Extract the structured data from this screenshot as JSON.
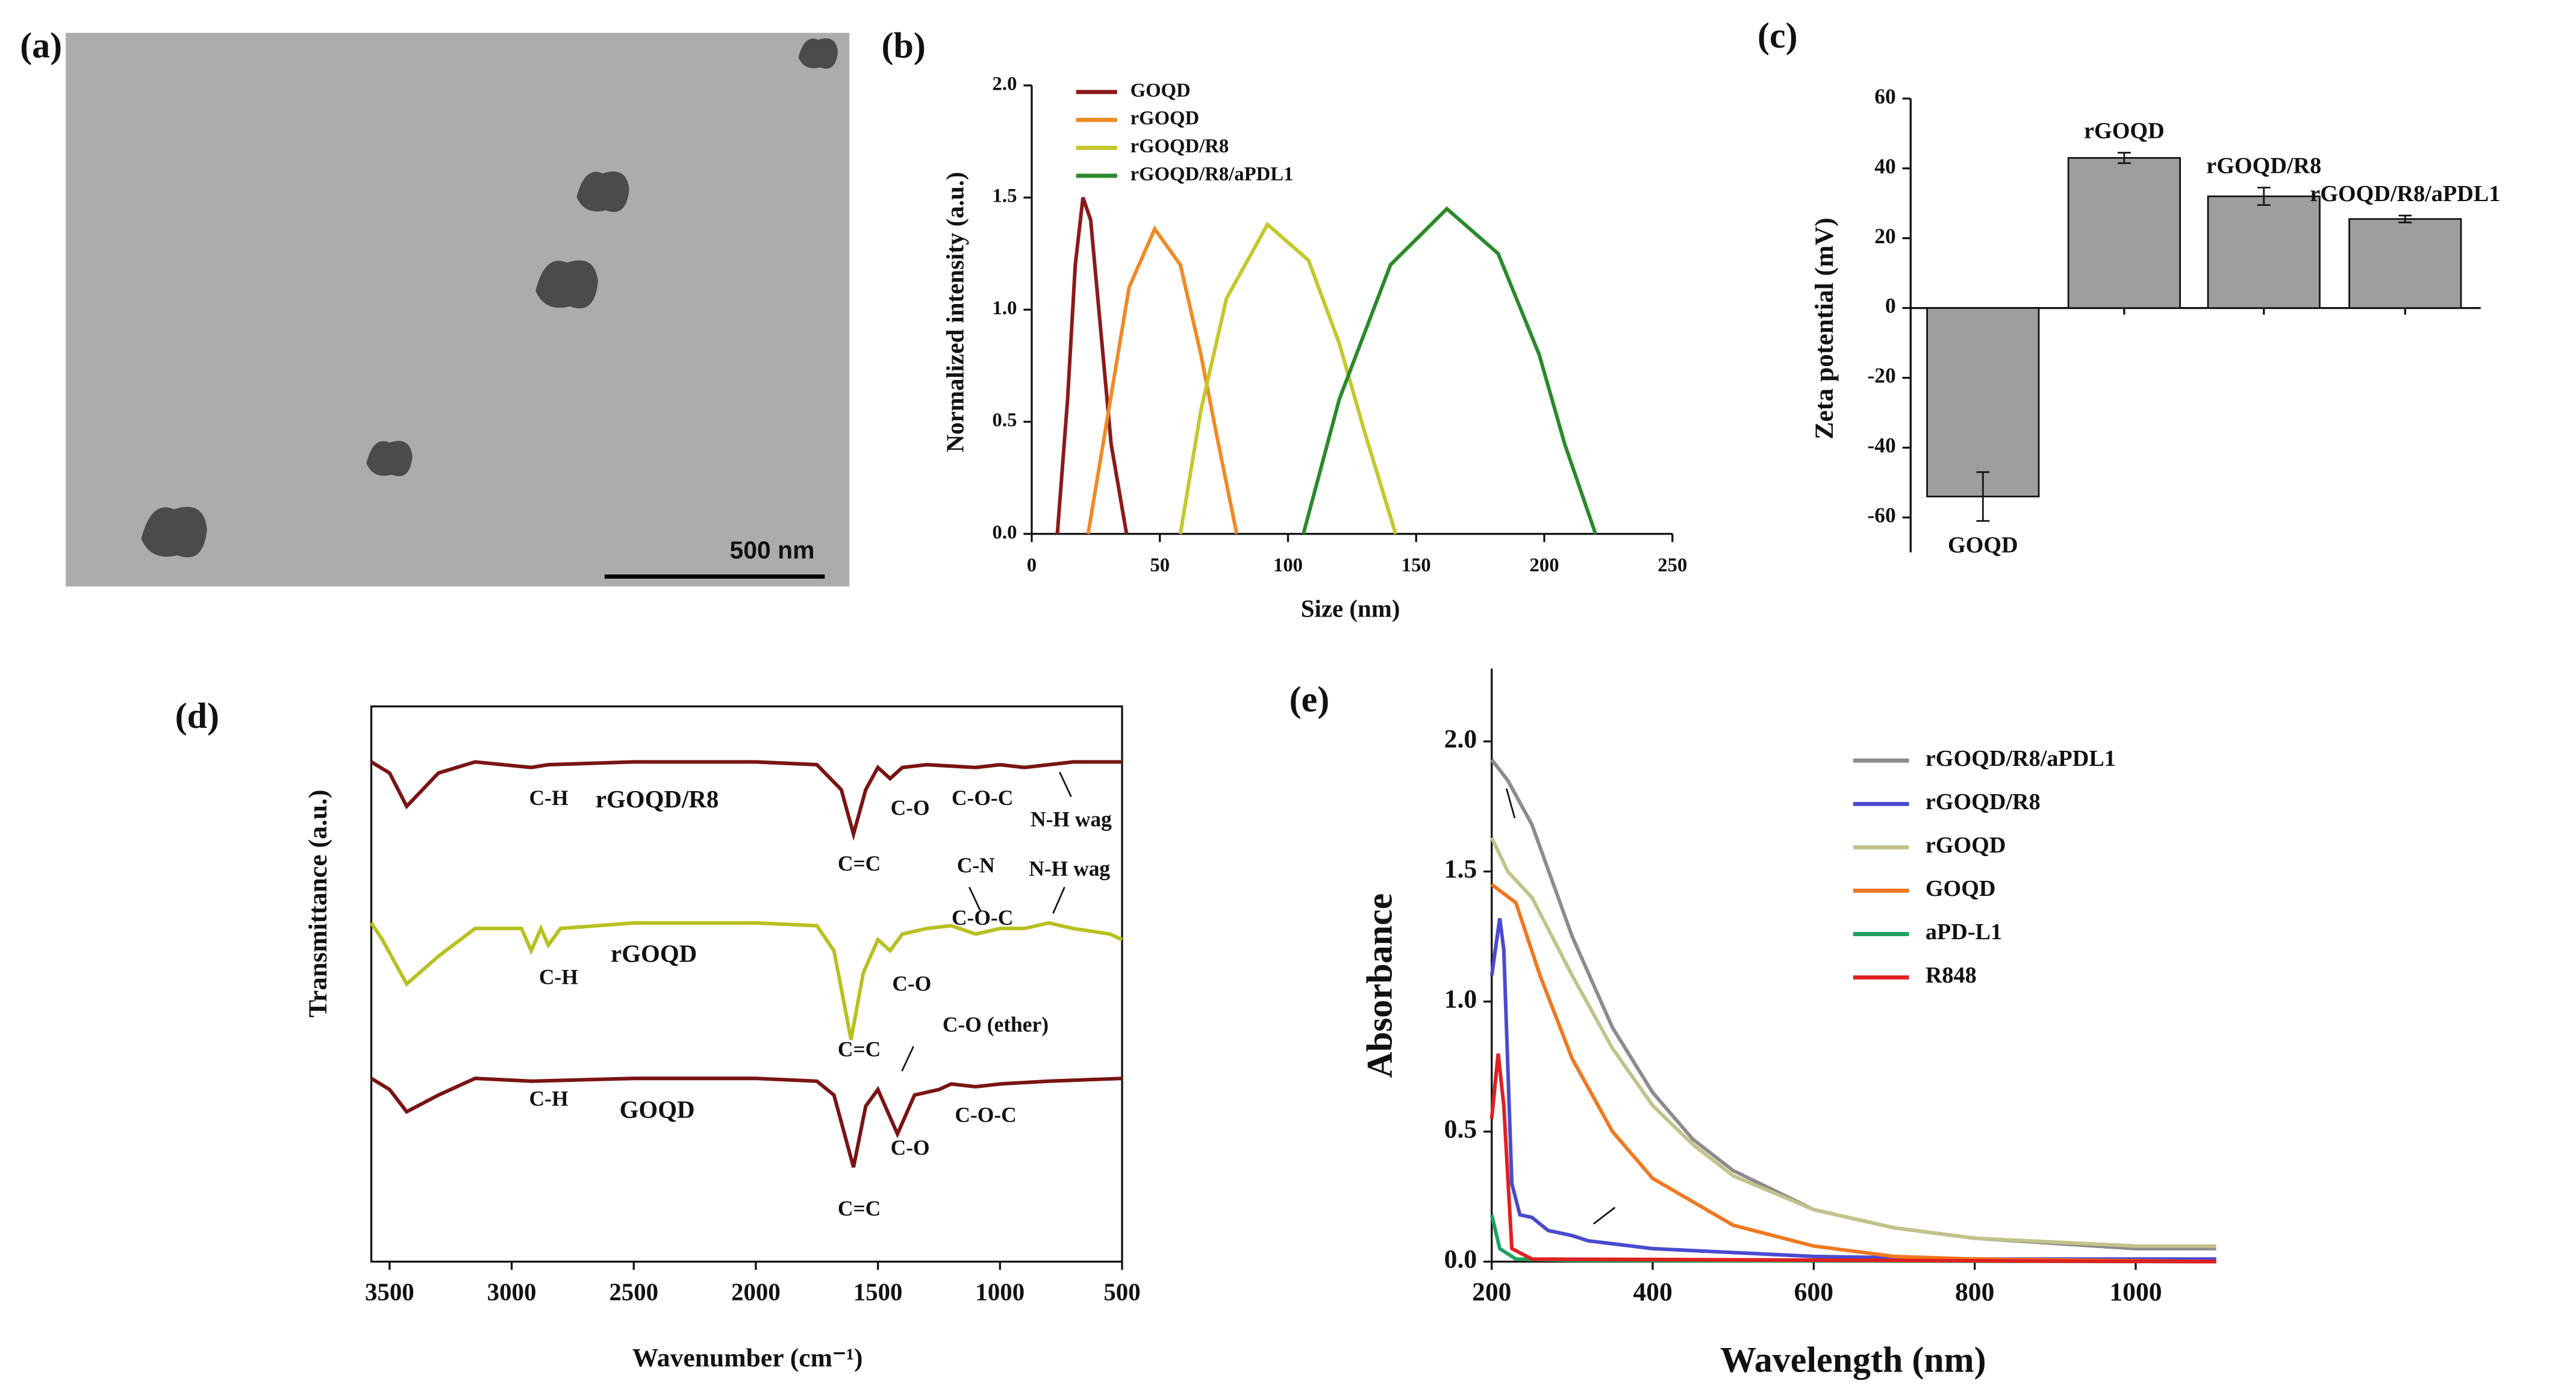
{
  "chart_data": [
    {
      "type": "image",
      "panel": "(a)",
      "scale_bar": "500 nm"
    },
    {
      "type": "line",
      "panel": "(b)",
      "x_label": "Size (nm)",
      "y_label": "Normalized intensity (a.u.)",
      "xlim": [
        0,
        250
      ],
      "xticks": [
        0,
        50,
        100,
        150,
        200,
        250
      ],
      "ylim": [
        0,
        2
      ],
      "yticks": [
        {
          "value": 0,
          "label": "0.0"
        },
        {
          "value": 0.5,
          "label": "0.5"
        },
        {
          "value": 1,
          "label": "1.0"
        },
        {
          "value": 1.5,
          "label": "1.5"
        },
        {
          "value": 2,
          "label": "2.0"
        }
      ],
      "series": [
        {
          "name": "GOQD",
          "color": "#8b1a1a",
          "x": [
            10,
            14,
            17,
            20,
            23,
            27,
            31,
            37
          ],
          "values": [
            0,
            0.6,
            1.2,
            1.5,
            1.4,
            0.9,
            0.4,
            0
          ]
        },
        {
          "name": "rGOQD",
          "color": "#f08a24",
          "x": [
            22,
            30,
            38,
            48,
            58,
            66,
            72,
            80
          ],
          "values": [
            0,
            0.55,
            1.1,
            1.36,
            1.2,
            0.8,
            0.45,
            0
          ]
        },
        {
          "name": "rGOQD/R8",
          "color": "#c4c82a",
          "x": [
            58,
            66,
            76,
            92,
            108,
            120,
            130,
            142
          ],
          "values": [
            0,
            0.55,
            1.05,
            1.38,
            1.22,
            0.85,
            0.45,
            0
          ]
        },
        {
          "name": "rGOQD/R8/aPDL1",
          "color": "#2a8a2a",
          "x": [
            106,
            120,
            140,
            162,
            182,
            198,
            208,
            220
          ],
          "values": [
            0,
            0.6,
            1.2,
            1.45,
            1.25,
            0.8,
            0.4,
            0
          ]
        }
      ]
    },
    {
      "type": "bar",
      "panel": "(c)",
      "y_label": "Zeta potential (mV)",
      "categories": [
        "GOQD",
        "rGOQD",
        "rGOQD/R8",
        "rGOQD/R8/aPDL1"
      ],
      "values": [
        -54,
        43,
        32,
        25.5
      ],
      "errors": [
        7,
        1.5,
        2.5,
        1
      ],
      "color": "#9e9e9e",
      "ylim": [
        -70,
        60
      ],
      "yticks": [
        -60,
        -40,
        -20,
        0,
        20,
        40,
        60
      ]
    },
    {
      "type": "line",
      "panel": "(d)",
      "x_label": "Wavenumber (cm⁻¹)",
      "y_label": "Transmittance (a.u.)",
      "xlim": [
        3575,
        500
      ],
      "xticks": [
        3500,
        3000,
        2500,
        2000,
        1500,
        1000,
        500
      ],
      "ylim": [
        0,
        100
      ],
      "annotations": [
        "C-H",
        "C-O",
        "C-O-C",
        "N-H wag",
        "C=C",
        "C-N",
        "N-H wag",
        "C-O-C",
        "C-H",
        "C-O",
        "C=C",
        "C-O (ether)",
        "C-H",
        "C-O",
        "C-O-C",
        "C=C"
      ],
      "series": [
        {
          "name": "rGOQD/R8",
          "color": "#7a1414",
          "x": [
            3575,
            3500,
            3430,
            3300,
            3150,
            2920,
            2850,
            2500,
            2000,
            1750,
            1650,
            1600,
            1550,
            1500,
            1450,
            1400,
            1300,
            1100,
            1000,
            900,
            800,
            700,
            500
          ],
          "values": [
            90,
            88,
            82,
            88,
            90,
            89,
            89.5,
            90,
            90,
            89.5,
            85,
            77,
            85,
            89,
            87,
            89,
            89.5,
            89,
            89.5,
            89,
            89.5,
            90,
            90
          ]
        },
        {
          "name": "rGOQD",
          "color": "#b8c020",
          "x": [
            3575,
            3530,
            3480,
            3430,
            3300,
            3150,
            2960,
            2920,
            2880,
            2850,
            2800,
            2500,
            2000,
            1750,
            1680,
            1610,
            1560,
            1500,
            1450,
            1400,
            1300,
            1200,
            1100,
            1000,
            900,
            800,
            700,
            550,
            500
          ],
          "values": [
            61,
            58,
            54,
            50,
            55,
            60,
            60,
            56,
            60,
            57,
            60,
            61,
            61,
            60.5,
            56,
            40,
            52,
            58,
            56,
            59,
            60,
            60.5,
            59,
            60,
            60,
            61,
            60,
            59,
            58
          ]
        },
        {
          "name": "GOQD",
          "color": "#7a1414",
          "x": [
            3575,
            3500,
            3430,
            3300,
            3150,
            2920,
            2500,
            2000,
            1750,
            1680,
            1600,
            1550,
            1500,
            1420,
            1350,
            1250,
            1200,
            1100,
            1000,
            800,
            500
          ],
          "values": [
            33,
            31,
            27,
            30,
            33,
            32.5,
            33,
            33,
            32.5,
            30,
            17,
            28,
            31,
            23,
            30,
            31,
            32,
            31.5,
            32,
            32.5,
            33
          ]
        }
      ]
    },
    {
      "type": "line",
      "panel": "(e)",
      "x_label": "Wavelength (nm)",
      "y_label": "Absorbance",
      "xlim": [
        200,
        1100
      ],
      "xticks": [
        200,
        400,
        600,
        800,
        1000
      ],
      "ylim": [
        0,
        2.28
      ],
      "yticks": [
        {
          "value": 0,
          "label": "0.0"
        },
        {
          "value": 0.5,
          "label": "0.5"
        },
        {
          "value": 1,
          "label": "1.0"
        },
        {
          "value": 1.5,
          "label": "1.5"
        },
        {
          "value": 2,
          "label": "2.0"
        }
      ],
      "series": [
        {
          "name": "rGOQD/R8/aPDL1",
          "color": "#8c8c8c",
          "x": [
            200,
            220,
            250,
            300,
            350,
            400,
            450,
            500,
            600,
            700,
            800,
            900,
            1000,
            1100
          ],
          "values": [
            1.93,
            1.85,
            1.68,
            1.25,
            0.9,
            0.65,
            0.47,
            0.35,
            0.2,
            0.13,
            0.09,
            0.07,
            0.05,
            0.05
          ]
        },
        {
          "name": "rGOQD/R8",
          "color": "#4a4ad0",
          "x": [
            200,
            210,
            215,
            225,
            235,
            250,
            270,
            300,
            320,
            400,
            600,
            800,
            1000,
            1100
          ],
          "values": [
            1.1,
            1.32,
            1.2,
            0.3,
            0.18,
            0.17,
            0.12,
            0.1,
            0.08,
            0.05,
            0.02,
            0.01,
            0.01,
            0.01
          ]
        },
        {
          "name": "rGOQD",
          "color": "#c2c28a",
          "x": [
            200,
            220,
            250,
            300,
            350,
            400,
            450,
            500,
            600,
            700,
            800,
            1000,
            1100
          ],
          "values": [
            1.63,
            1.5,
            1.4,
            1.1,
            0.82,
            0.6,
            0.45,
            0.33,
            0.2,
            0.13,
            0.09,
            0.06,
            0.06
          ]
        },
        {
          "name": "GOQD",
          "color": "#f07820",
          "x": [
            200,
            230,
            260,
            300,
            350,
            400,
            500,
            600,
            700,
            800,
            1100
          ],
          "values": [
            1.45,
            1.38,
            1.1,
            0.78,
            0.5,
            0.32,
            0.14,
            0.06,
            0.02,
            0.01,
            0
          ]
        },
        {
          "name": "aPD-L1",
          "color": "#20a060",
          "x": [
            200,
            210,
            230,
            300,
            1100
          ],
          "values": [
            0.18,
            0.05,
            0.01,
            0.005,
            0
          ]
        },
        {
          "name": "R848",
          "color": "#e02020",
          "x": [
            200,
            208,
            215,
            225,
            250,
            1100
          ],
          "values": [
            0.55,
            0.8,
            0.6,
            0.05,
            0.01,
            0
          ]
        }
      ]
    }
  ]
}
